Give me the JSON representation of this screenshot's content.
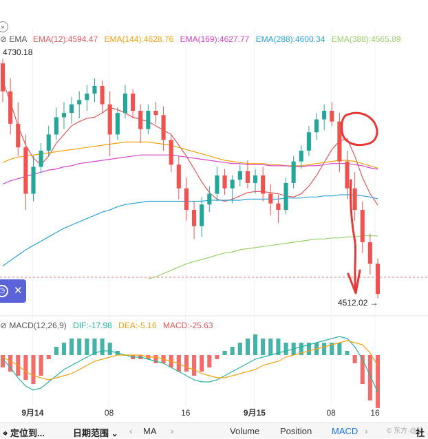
{
  "ema_legend": {
    "label": "EMA",
    "items": [
      {
        "text": "EMA(12):4594.47",
        "color": "#e0575a"
      },
      {
        "text": "EMA(144):4628.76",
        "color": "#f2a10d"
      },
      {
        "text": "EMA(169):4627.77",
        "color": "#d445c9"
      },
      {
        "text": "EMA(288):4600.34",
        "color": "#2aa3d8"
      },
      {
        "text": "EMA(388):4565.89",
        "color": "#9ad06a"
      }
    ]
  },
  "macd_legend": {
    "label": "MACD(12,26,9)",
    "dif": "DIF:-17.98",
    "dea": "DEA:-5.16",
    "macd": "MACD:-25.63",
    "dif_color": "#27b2a0",
    "dea_color": "#f2a10d",
    "macd_color": "#e0575a"
  },
  "price_high_label": "4730.18",
  "price_last_label": "4512.02",
  "bottom_bar": {
    "locate": "定位到...",
    "date_range": "日期范围",
    "ma": "MA",
    "volume": "Volume",
    "position": "Position",
    "macd": "MACD",
    "community": "社",
    "watermark": "© 东方·@陆"
  },
  "colors": {
    "up": "#26a69a",
    "down": "#ef5350",
    "annotation": "#e53935",
    "accent": "#5b63d9"
  },
  "chart_data": [
    {
      "type": "candlestick",
      "title": "",
      "x_tick_labels": [
        "9月14",
        "08",
        "16",
        "9月15",
        "08",
        "16"
      ],
      "y_labels": {
        "high": 4730.18,
        "last": 4512.02
      },
      "ylim": [
        4500,
        4735
      ],
      "overlays": [
        {
          "name": "EMA(12)",
          "last": 4594.47,
          "values": [
            4710,
            4690,
            4668,
            4650,
            4638,
            4632,
            4640,
            4652,
            4660,
            4668,
            4672,
            4675,
            4676,
            4680,
            4685,
            4683,
            4680,
            4676,
            4674,
            4672,
            4668,
            4664,
            4660,
            4650,
            4640,
            4628,
            4616,
            4606,
            4600,
            4598,
            4600,
            4603,
            4606,
            4607,
            4607,
            4606,
            4605,
            4603,
            4602,
            4605,
            4612,
            4622,
            4634,
            4646,
            4654,
            4656,
            4640,
            4620,
            4605,
            4594.47
          ]
        },
        {
          "name": "EMA(144)",
          "last": 4628.76,
          "values": [
            4634,
            4637,
            4639,
            4640,
            4641,
            4642,
            4643,
            4644,
            4645,
            4646,
            4647,
            4648,
            4649,
            4650,
            4651,
            4652,
            4653,
            4653,
            4653,
            4653,
            4652,
            4651,
            4650,
            4648,
            4646,
            4644,
            4642,
            4640,
            4638,
            4636,
            4635,
            4634,
            4633,
            4633,
            4633,
            4632,
            4632,
            4631,
            4631,
            4631,
            4632,
            4633,
            4634,
            4635,
            4636,
            4636,
            4635,
            4633,
            4631,
            4628.76
          ]
        },
        {
          "name": "EMA(169)",
          "last": 4627.77,
          "values": [
            4614,
            4617,
            4619,
            4621,
            4623,
            4625,
            4627,
            4628,
            4630,
            4631,
            4633,
            4634,
            4635,
            4636,
            4637,
            4638,
            4639,
            4640,
            4641,
            4641,
            4641,
            4641,
            4641,
            4640,
            4639,
            4638,
            4637,
            4636,
            4635,
            4634,
            4633,
            4633,
            4632,
            4632,
            4632,
            4631,
            4631,
            4631,
            4630,
            4630,
            4631,
            4631,
            4632,
            4633,
            4633,
            4633,
            4632,
            4631,
            4629,
            4627.77
          ]
        },
        {
          "name": "EMA(288)",
          "last": 4600.34,
          "values": [
            4538,
            4543,
            4548,
            4553,
            4557,
            4561,
            4565,
            4569,
            4573,
            4576,
            4579,
            4582,
            4585,
            4588,
            4590,
            4593,
            4595,
            4596,
            4597,
            4598,
            4598,
            4598,
            4598,
            4598,
            4598,
            4598,
            4598,
            4599,
            4599,
            4599,
            4599,
            4599,
            4600,
            4600,
            4600,
            4600,
            4600,
            4601,
            4601,
            4601,
            4602,
            4602,
            4603,
            4603,
            4604,
            4604,
            4604,
            4603,
            4602,
            4600.34
          ]
        },
        {
          "name": "EMA(388)",
          "last": 4565.89,
          "values": [
            null,
            null,
            null,
            null,
            null,
            null,
            null,
            null,
            null,
            null,
            null,
            null,
            null,
            null,
            null,
            null,
            null,
            null,
            null,
            4526,
            4528,
            4531,
            4534,
            4537,
            4540,
            4542,
            4544,
            4546,
            4548,
            4550,
            4551,
            4553,
            4554,
            4555,
            4556,
            4557,
            4558,
            4559,
            4560,
            4561,
            4562,
            4563,
            4563,
            4564,
            4564,
            4565,
            4565,
            4566,
            4566,
            4565.89
          ]
        }
      ],
      "candles": [
        {
          "o": 4726,
          "h": 4730.18,
          "l": 4690,
          "c": 4700
        },
        {
          "o": 4700,
          "h": 4712,
          "l": 4660,
          "c": 4670
        },
        {
          "o": 4670,
          "h": 4690,
          "l": 4640,
          "c": 4648
        },
        {
          "o": 4648,
          "h": 4660,
          "l": 4590,
          "c": 4605
        },
        {
          "o": 4605,
          "h": 4640,
          "l": 4598,
          "c": 4630
        },
        {
          "o": 4630,
          "h": 4652,
          "l": 4624,
          "c": 4645
        },
        {
          "o": 4645,
          "h": 4668,
          "l": 4640,
          "c": 4660
        },
        {
          "o": 4660,
          "h": 4685,
          "l": 4655,
          "c": 4676
        },
        {
          "o": 4676,
          "h": 4690,
          "l": 4665,
          "c": 4680
        },
        {
          "o": 4680,
          "h": 4695,
          "l": 4670,
          "c": 4688
        },
        {
          "o": 4688,
          "h": 4700,
          "l": 4675,
          "c": 4692
        },
        {
          "o": 4692,
          "h": 4706,
          "l": 4682,
          "c": 4698
        },
        {
          "o": 4698,
          "h": 4712,
          "l": 4690,
          "c": 4705
        },
        {
          "o": 4705,
          "h": 4710,
          "l": 4680,
          "c": 4688
        },
        {
          "o": 4688,
          "h": 4700,
          "l": 4640,
          "c": 4660
        },
        {
          "o": 4660,
          "h": 4685,
          "l": 4655,
          "c": 4680
        },
        {
          "o": 4680,
          "h": 4706,
          "l": 4675,
          "c": 4698
        },
        {
          "o": 4698,
          "h": 4702,
          "l": 4675,
          "c": 4682
        },
        {
          "o": 4682,
          "h": 4688,
          "l": 4652,
          "c": 4665
        },
        {
          "o": 4665,
          "h": 4688,
          "l": 4660,
          "c": 4682
        },
        {
          "o": 4682,
          "h": 4690,
          "l": 4670,
          "c": 4678
        },
        {
          "o": 4678,
          "h": 4686,
          "l": 4645,
          "c": 4655
        },
        {
          "o": 4655,
          "h": 4660,
          "l": 4625,
          "c": 4632
        },
        {
          "o": 4632,
          "h": 4640,
          "l": 4600,
          "c": 4610
        },
        {
          "o": 4610,
          "h": 4620,
          "l": 4580,
          "c": 4590
        },
        {
          "o": 4590,
          "h": 4598,
          "l": 4563,
          "c": 4575
        },
        {
          "o": 4575,
          "h": 4602,
          "l": 4565,
          "c": 4595
        },
        {
          "o": 4595,
          "h": 4612,
          "l": 4588,
          "c": 4605
        },
        {
          "o": 4605,
          "h": 4630,
          "l": 4598,
          "c": 4622
        },
        {
          "o": 4622,
          "h": 4628,
          "l": 4604,
          "c": 4610
        },
        {
          "o": 4610,
          "h": 4622,
          "l": 4596,
          "c": 4618
        },
        {
          "o": 4618,
          "h": 4632,
          "l": 4612,
          "c": 4626
        },
        {
          "o": 4626,
          "h": 4636,
          "l": 4610,
          "c": 4615
        },
        {
          "o": 4615,
          "h": 4628,
          "l": 4605,
          "c": 4622
        },
        {
          "o": 4622,
          "h": 4630,
          "l": 4598,
          "c": 4605
        },
        {
          "o": 4605,
          "h": 4614,
          "l": 4585,
          "c": 4596
        },
        {
          "o": 4596,
          "h": 4604,
          "l": 4578,
          "c": 4590
        },
        {
          "o": 4590,
          "h": 4620,
          "l": 4586,
          "c": 4615
        },
        {
          "o": 4615,
          "h": 4640,
          "l": 4610,
          "c": 4635
        },
        {
          "o": 4635,
          "h": 4650,
          "l": 4628,
          "c": 4645
        },
        {
          "o": 4645,
          "h": 4668,
          "l": 4640,
          "c": 4662
        },
        {
          "o": 4662,
          "h": 4680,
          "l": 4655,
          "c": 4674
        },
        {
          "o": 4674,
          "h": 4688,
          "l": 4664,
          "c": 4682
        },
        {
          "o": 4682,
          "h": 4690,
          "l": 4668,
          "c": 4672
        },
        {
          "o": 4672,
          "h": 4680,
          "l": 4625,
          "c": 4635
        },
        {
          "o": 4635,
          "h": 4645,
          "l": 4600,
          "c": 4610
        },
        {
          "o": 4610,
          "h": 4625,
          "l": 4580,
          "c": 4590
        },
        {
          "o": 4590,
          "h": 4598,
          "l": 4550,
          "c": 4560
        },
        {
          "o": 4560,
          "h": 4568,
          "l": 4530,
          "c": 4540
        },
        {
          "o": 4540,
          "h": 4545,
          "l": 4508,
          "c": 4512.02
        }
      ]
    },
    {
      "type": "bar",
      "title": "MACD(12,26,9)",
      "series": [
        {
          "name": "DIF",
          "last": -17.98,
          "values": [
            -2,
            -6,
            -11,
            -15,
            -17,
            -16,
            -13,
            -10,
            -7,
            -5,
            -3,
            -1,
            1,
            2,
            2,
            1,
            0,
            -1,
            -1,
            -2,
            -3,
            -4,
            -6,
            -8,
            -10,
            -12,
            -13,
            -13,
            -12,
            -10,
            -8,
            -6,
            -4,
            -2,
            -1,
            0,
            1,
            2,
            3,
            4,
            5,
            6,
            7,
            8,
            9,
            8,
            4,
            -2,
            -10,
            -17.98
          ]
        },
        {
          "name": "DEA",
          "last": -5.16,
          "values": [
            -1,
            -3,
            -5,
            -8,
            -10,
            -11,
            -12,
            -11,
            -10,
            -9,
            -7,
            -5,
            -3,
            -2,
            -1,
            0,
            0,
            0,
            0,
            -1,
            -1,
            -2,
            -3,
            -4,
            -6,
            -7,
            -9,
            -10,
            -11,
            -11,
            -10,
            -9,
            -8,
            -7,
            -5,
            -4,
            -3,
            -1,
            0,
            1,
            2,
            3,
            4,
            5,
            6,
            7,
            6,
            5,
            1,
            -5.16
          ]
        },
        {
          "name": "MACD",
          "last": -25.63,
          "values": [
            -6,
            -8,
            -10,
            -12,
            -14,
            -10,
            -2,
            4,
            6,
            8,
            8,
            8,
            8,
            8,
            6,
            2,
            0,
            -2,
            -2,
            -2,
            -4,
            -4,
            -6,
            -8,
            -8,
            -10,
            -8,
            -6,
            -2,
            2,
            4,
            6,
            8,
            10,
            8,
            8,
            8,
            6,
            6,
            6,
            6,
            6,
            6,
            6,
            6,
            2,
            -4,
            -14,
            -22,
            -25.63
          ]
        }
      ]
    }
  ]
}
